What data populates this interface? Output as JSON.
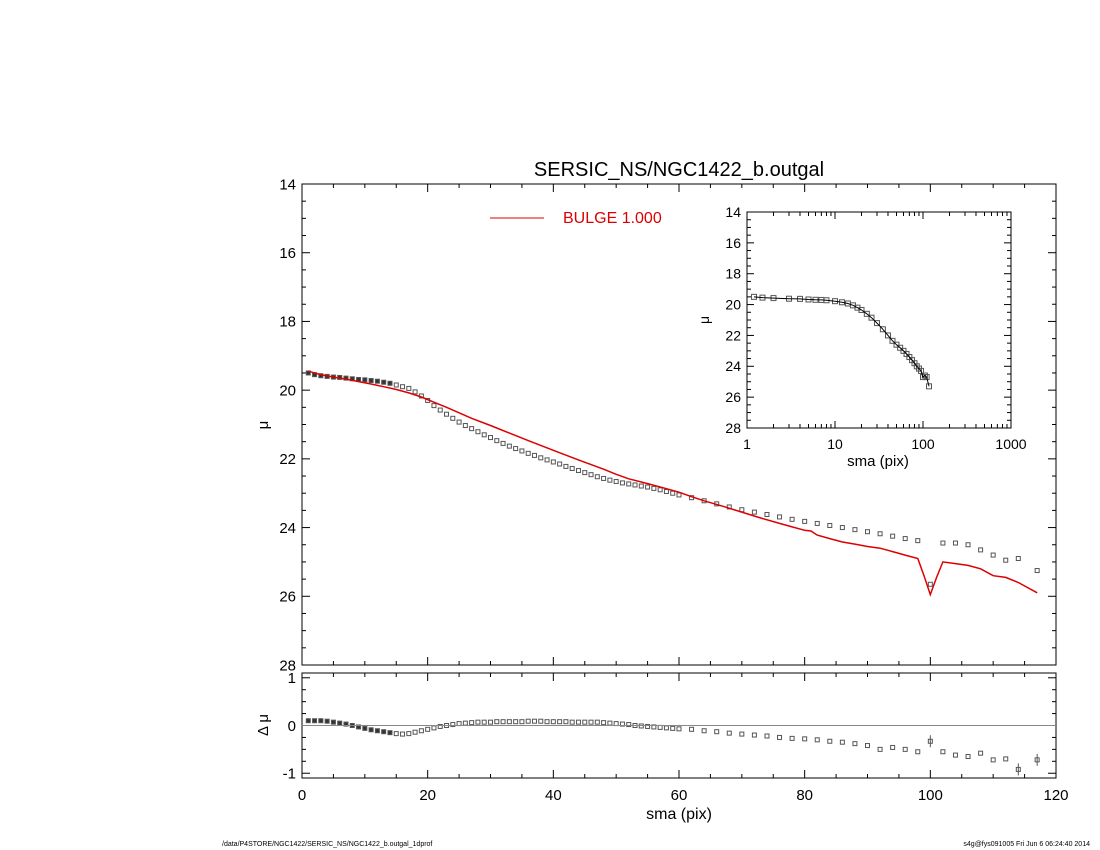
{
  "title": "SERSIC_NS/NGC1422_b.outgal",
  "footer": {
    "left": "/data/P4STORE/NGC1422/SERSIC_NS/NGC1422_b.outgal_1dprof",
    "right": "s4g@fys091005  Fri Jun  6 06:24:40 2014"
  },
  "colors": {
    "model": "#dd0000",
    "data": "#555555",
    "axis": "#000000"
  },
  "chart_data": [
    {
      "id": "main",
      "type": "scatter",
      "title": "SERSIC_NS/NGC1422_b.outgal",
      "xlabel": "",
      "ylabel": "μ",
      "xlim": [
        0,
        120
      ],
      "ylim": [
        28,
        14
      ],
      "y_inverted": true,
      "xticks": [
        0,
        20,
        40,
        60,
        80,
        100,
        120
      ],
      "yticks": [
        14,
        16,
        18,
        20,
        22,
        24,
        26,
        28
      ],
      "legend": {
        "placement": "top-center",
        "entries": [
          {
            "label": "BULGE  1.000",
            "color": "#dd0000"
          }
        ]
      },
      "series": [
        {
          "name": "",
          "style": "squares",
          "x": [
            1,
            2,
            3,
            4,
            5,
            6,
            7,
            8,
            9,
            10,
            11,
            12,
            13,
            14,
            15,
            16,
            17,
            18,
            19,
            20,
            21,
            22,
            23,
            24,
            25,
            26,
            27,
            28,
            29,
            30,
            31,
            32,
            33,
            34,
            35,
            36,
            37,
            38,
            39,
            40,
            41,
            42,
            43,
            44,
            45,
            46,
            47,
            48,
            49,
            50,
            51,
            52,
            53,
            54,
            55,
            56,
            57,
            58,
            59,
            60,
            62,
            64,
            66,
            68,
            70,
            72,
            74,
            76,
            78,
            80,
            82,
            84,
            86,
            88,
            90,
            92,
            94,
            96,
            98,
            100,
            102,
            104,
            106,
            108,
            110,
            112,
            114,
            117
          ],
          "y": [
            19.5,
            19.55,
            19.58,
            19.6,
            19.62,
            19.63,
            19.65,
            19.67,
            19.69,
            19.7,
            19.72,
            19.74,
            19.77,
            19.8,
            19.85,
            19.9,
            19.95,
            20.05,
            20.17,
            20.3,
            20.45,
            20.58,
            20.7,
            20.82,
            20.93,
            21.03,
            21.12,
            21.21,
            21.3,
            21.38,
            21.47,
            21.55,
            21.63,
            21.7,
            21.77,
            21.84,
            21.9,
            21.97,
            22.03,
            22.09,
            22.15,
            22.22,
            22.28,
            22.34,
            22.4,
            22.46,
            22.52,
            22.57,
            22.62,
            22.66,
            22.7,
            22.73,
            22.76,
            22.79,
            22.82,
            22.86,
            22.9,
            22.95,
            23.0,
            23.05,
            23.13,
            23.22,
            23.31,
            23.4,
            23.48,
            23.55,
            23.62,
            23.69,
            23.76,
            23.82,
            23.88,
            23.94,
            24.0,
            24.06,
            24.12,
            24.18,
            24.25,
            24.32,
            24.38,
            25.65,
            24.45,
            24.45,
            24.5,
            24.65,
            24.8,
            24.95,
            24.9,
            25.25
          ]
        },
        {
          "name": "BULGE  1.000",
          "style": "line",
          "x": [
            1,
            3,
            5,
            7,
            9,
            11,
            13,
            15,
            17,
            19,
            21,
            23,
            25,
            27,
            30,
            33,
            36,
            40,
            44,
            48,
            50,
            52,
            55,
            58,
            60,
            62,
            64,
            67,
            70,
            73,
            76,
            78,
            80,
            81,
            82,
            84,
            86,
            88,
            90,
            92,
            94,
            96,
            98,
            99,
            100,
            101,
            102,
            104,
            106,
            108,
            110,
            112,
            114,
            117
          ],
          "y": [
            19.45,
            19.55,
            19.62,
            19.68,
            19.75,
            19.82,
            19.9,
            19.98,
            20.08,
            20.2,
            20.35,
            20.5,
            20.66,
            20.82,
            21.03,
            21.25,
            21.47,
            21.75,
            22.03,
            22.3,
            22.45,
            22.58,
            22.72,
            22.87,
            22.97,
            23.1,
            23.22,
            23.38,
            23.55,
            23.72,
            23.88,
            23.98,
            24.08,
            24.1,
            24.22,
            24.32,
            24.42,
            24.48,
            24.55,
            24.6,
            24.7,
            24.8,
            24.9,
            25.4,
            25.95,
            25.45,
            25.0,
            25.05,
            25.1,
            25.2,
            25.4,
            25.45,
            25.6,
            25.9
          ]
        }
      ]
    },
    {
      "id": "residual",
      "type": "scatter",
      "xlabel": "sma (pix)",
      "ylabel": "Δ μ",
      "xlim": [
        0,
        120
      ],
      "ylim": [
        -1.1,
        1.1
      ],
      "xticks": [
        0,
        20,
        40,
        60,
        80,
        100,
        120
      ],
      "yticks": [
        -1,
        0,
        1
      ],
      "series": [
        {
          "name": "",
          "style": "squares",
          "x": [
            1,
            2,
            3,
            4,
            5,
            6,
            7,
            8,
            9,
            10,
            11,
            12,
            13,
            14,
            15,
            16,
            17,
            18,
            19,
            20,
            21,
            22,
            23,
            24,
            25,
            26,
            27,
            28,
            29,
            30,
            31,
            32,
            33,
            34,
            35,
            36,
            37,
            38,
            39,
            40,
            41,
            42,
            43,
            44,
            45,
            46,
            47,
            48,
            49,
            50,
            51,
            52,
            53,
            54,
            55,
            56,
            57,
            58,
            59,
            60,
            62,
            64,
            66,
            68,
            70,
            72,
            74,
            76,
            78,
            80,
            82,
            84,
            86,
            88,
            90,
            92,
            94,
            96,
            98,
            100,
            102,
            104,
            106,
            108,
            110,
            112,
            114,
            117
          ],
          "y": [
            0.1,
            0.1,
            0.1,
            0.09,
            0.07,
            0.05,
            0.03,
            0.0,
            -0.03,
            -0.06,
            -0.09,
            -0.11,
            -0.13,
            -0.15,
            -0.17,
            -0.18,
            -0.17,
            -0.14,
            -0.11,
            -0.08,
            -0.05,
            -0.02,
            0.0,
            0.02,
            0.04,
            0.05,
            0.06,
            0.07,
            0.07,
            0.07,
            0.08,
            0.08,
            0.08,
            0.08,
            0.08,
            0.09,
            0.09,
            0.09,
            0.08,
            0.08,
            0.08,
            0.08,
            0.07,
            0.07,
            0.07,
            0.07,
            0.07,
            0.06,
            0.05,
            0.04,
            0.03,
            0.02,
            0.0,
            -0.01,
            -0.02,
            -0.03,
            -0.04,
            -0.05,
            -0.06,
            -0.07,
            -0.08,
            -0.11,
            -0.13,
            -0.16,
            -0.18,
            -0.2,
            -0.22,
            -0.25,
            -0.27,
            -0.28,
            -0.3,
            -0.33,
            -0.35,
            -0.38,
            -0.42,
            -0.5,
            -0.46,
            -0.5,
            -0.55,
            -0.33,
            -0.55,
            -0.62,
            -0.65,
            -0.58,
            -0.72,
            -0.7,
            -0.92,
            -0.72
          ]
        },
        {
          "name": "",
          "style": "zero-line",
          "x": [
            0,
            120
          ],
          "y": [
            0,
            0
          ]
        }
      ]
    },
    {
      "id": "inset",
      "type": "scatter",
      "xlabel": "sma (pix)",
      "ylabel": "μ",
      "xscale": "log",
      "xlim": [
        1,
        1000
      ],
      "ylim": [
        28,
        14
      ],
      "y_inverted": true,
      "xticks": [
        1,
        10,
        100,
        1000
      ],
      "yticks": [
        14,
        16,
        18,
        20,
        22,
        24,
        26,
        28
      ],
      "series": [
        {
          "name": "",
          "style": "squares",
          "x": [
            1.2,
            1.5,
            2,
            3,
            4,
            5,
            6,
            7,
            8,
            10,
            12,
            14,
            16,
            18,
            20,
            23,
            26,
            30,
            35,
            40,
            45,
            50,
            55,
            60,
            65,
            70,
            75,
            80,
            85,
            90,
            95,
            100,
            105,
            110,
            117
          ],
          "y": [
            19.5,
            19.55,
            19.58,
            19.62,
            19.63,
            19.67,
            19.69,
            19.7,
            19.72,
            19.78,
            19.85,
            19.93,
            20.05,
            20.2,
            20.35,
            20.6,
            20.85,
            21.2,
            21.6,
            22.0,
            22.35,
            22.6,
            22.8,
            23.0,
            23.2,
            23.4,
            23.6,
            23.8,
            24.0,
            24.15,
            24.3,
            24.7,
            24.6,
            24.7,
            25.3
          ]
        }
      ]
    }
  ]
}
